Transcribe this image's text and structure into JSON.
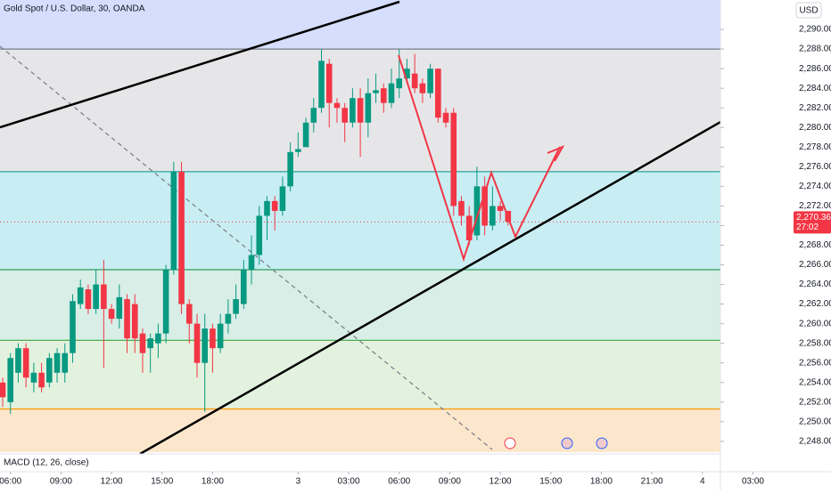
{
  "chart_data": {
    "type": "candlestick",
    "title": "Gold Spot / U.S. Dollar, 30, OANDA",
    "currency": "USD",
    "indicator": "MACD (12, 26, close)",
    "up_color": "#089981",
    "down_color": "#f23645",
    "open": [
      2254,
      2252,
      2255,
      2257.5,
      2254,
      2255,
      2254,
      2255,
      2255,
      2257,
      2262,
      2263.5,
      2261.5,
      2264,
      2261.5,
      2260.5,
      2262.5,
      2262,
      2259,
      2257.5,
      2258,
      2259,
      2265.5,
      2275.5,
      2262,
      2260,
      2256,
      2259.5,
      2257.5,
      2260,
      2261,
      2262,
      2265.5,
      2267,
      2271,
      2272.5,
      2271.5,
      2274,
      2277.5,
      2278,
      2280.5,
      2282,
      2286.5,
      2282.5,
      2282,
      2280.5,
      2283,
      2280.5,
      2283.5,
      2284,
      2282.5,
      2284,
      2285,
      2285.5,
      2284.5,
      2283.5,
      2286,
      2281.5,
      2281.5,
      2272.5,
      2271,
      2269,
      2274,
      2270,
      2272,
      2271.5
    ],
    "high": [
      2254.5,
      2257,
      2258,
      2258,
      2256,
      2256,
      2257,
      2257.5,
      2258,
      2263,
      2264.5,
      2264,
      2265.5,
      2266.5,
      2262,
      2264,
      2263,
      2263,
      2259.5,
      2259,
      2260,
      2266,
      2276.5,
      2276.5,
      2262.5,
      2261,
      2261,
      2260,
      2261,
      2262.5,
      2264,
      2266.5,
      2269,
      2272,
      2273,
      2273,
      2275,
      2278.5,
      2279.5,
      2281,
      2283,
      2288,
      2287,
      2283,
      2282.5,
      2284,
      2284,
      2285,
      2285.5,
      2284.5,
      2286,
      2288,
      2287,
      2287.5,
      2285,
      2286.5,
      2286,
      2282,
      2282,
      2273,
      2272,
      2276,
      2275,
      2274,
      2272.5,
      2271.5
    ],
    "low": [
      2251.5,
      2250.8,
      2254,
      2253.5,
      2253,
      2253,
      2253.5,
      2254,
      2254,
      2256,
      2261.5,
      2261,
      2261,
      2255.5,
      2260,
      2259.5,
      2257,
      2257,
      2255,
      2255,
      2256.5,
      2258,
      2265,
      2261,
      2258,
      2254.5,
      2251,
      2255,
      2257,
      2259,
      2260.5,
      2261.5,
      2264,
      2266,
      2268.5,
      2269.5,
      2271,
      2273.5,
      2277,
      2278,
      2279.5,
      2281.5,
      2280,
      2280.5,
      2278.5,
      2280,
      2277,
      2279,
      2282.5,
      2281.5,
      2282,
      2283,
      2284.5,
      2283.5,
      2282.5,
      2283,
      2280.5,
      2280,
      2271,
      2270,
      2268,
      2268.5,
      2269,
      2269.5,
      2270.5,
      2270
    ],
    "close": [
      2252.5,
      2256.5,
      2257.5,
      2254.5,
      2255,
      2253.5,
      2256.5,
      2257,
      2257,
      2262.3,
      2263.7,
      2261.5,
      2264,
      2261.5,
      2260.5,
      2262.7,
      2258.5,
      2258.5,
      2257,
      2258.5,
      2259,
      2265.5,
      2275.5,
      2262,
      2260,
      2256,
      2259.5,
      2257.5,
      2260,
      2261,
      2262.5,
      2265.5,
      2267,
      2271,
      2272.5,
      2271.5,
      2274,
      2277.5,
      2277.8,
      2280.5,
      2282,
      2286.8,
      2282.5,
      2282,
      2280.5,
      2283,
      2280.5,
      2283.5,
      2283.8,
      2282.5,
      2284.5,
      2285,
      2286,
      2284,
      2283.5,
      2286,
      2281,
      2280.5,
      2272,
      2271,
      2268.5,
      2274,
      2270,
      2272,
      2271.5,
      2270.4
    ],
    "last_price": {
      "value": 2270.365,
      "label": "2,270.365"
    },
    "countdown": "27:02",
    "levels": [
      {
        "value": 2288,
        "color": "#787b86"
      },
      {
        "value": 2275.5,
        "color": "#26a69a"
      },
      {
        "value": 2265.5,
        "color": "#2e9e5e"
      },
      {
        "value": 2258.3,
        "color": "#4caf50"
      },
      {
        "value": 2251.3,
        "color": "#ff9800"
      }
    ],
    "band_colors": [
      "#d5defc",
      "#e6e6e8",
      "#c8eef3",
      "#d8eee6",
      "#e3f2de",
      "#fde7cc"
    ],
    "ylim": [
      2246.9,
      2293
    ],
    "yticks": [
      {
        "value": 2248,
        "label": "2,248.00"
      },
      {
        "value": 2250,
        "label": "2,250.00"
      },
      {
        "value": 2252,
        "label": "2,252.00"
      },
      {
        "value": 2254,
        "label": "2,254.00"
      },
      {
        "value": 2256,
        "label": "2,256.00"
      },
      {
        "value": 2258,
        "label": "2,258.00"
      },
      {
        "value": 2260,
        "label": "2,260.00"
      },
      {
        "value": 2262,
        "label": "2,262.00"
      },
      {
        "value": 2264,
        "label": "2,264.00"
      },
      {
        "value": 2266,
        "label": "2,266.00"
      },
      {
        "value": 2268,
        "label": "2,268.00"
      },
      {
        "value": 2270,
        "label": "2,270.00"
      },
      {
        "value": 2272,
        "label": "2,272.00"
      },
      {
        "value": 2274,
        "label": "2,274.00"
      },
      {
        "value": 2276,
        "label": "2,276.00"
      },
      {
        "value": 2278,
        "label": "2,278.00"
      },
      {
        "value": 2280,
        "label": "2,280.00"
      },
      {
        "value": 2282,
        "label": "2,282.00"
      },
      {
        "value": 2284,
        "label": "2,284.00"
      },
      {
        "value": 2286,
        "label": "2,286.00"
      },
      {
        "value": 2288,
        "label": "2,288.00"
      },
      {
        "value": 2290,
        "label": "2,290.00"
      }
    ],
    "xticks": [
      {
        "value": 1,
        "label": "06:00"
      },
      {
        "value": 7.5,
        "label": "09:00"
      },
      {
        "value": 14,
        "label": "12:00"
      },
      {
        "value": 20.5,
        "label": "15:00"
      },
      {
        "value": 27,
        "label": "18:00"
      },
      {
        "value": 38,
        "label": "3"
      },
      {
        "value": 44.5,
        "label": "03:00"
      },
      {
        "value": 51,
        "label": "06:00"
      },
      {
        "value": 57.5,
        "label": "09:00"
      },
      {
        "value": 64,
        "label": "12:00"
      },
      {
        "value": 70.5,
        "label": "15:00"
      },
      {
        "value": 77,
        "label": "18:00"
      },
      {
        "value": 83.5,
        "label": "21:00"
      },
      {
        "value": 90,
        "label": "4"
      },
      {
        "value": 96.5,
        "label": "03:00"
      }
    ]
  }
}
